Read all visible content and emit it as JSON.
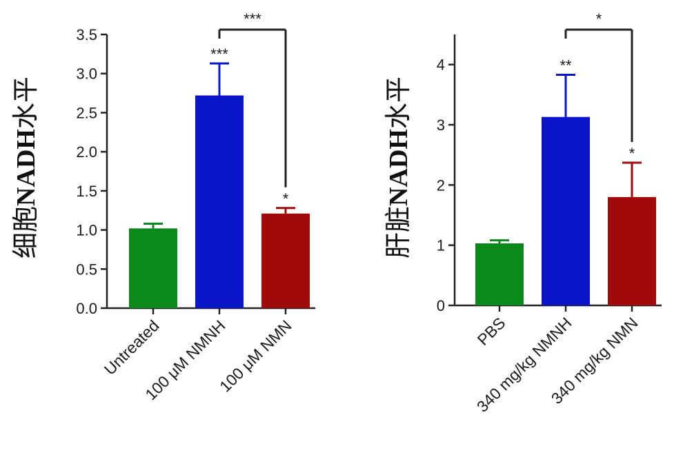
{
  "chart_data": [
    {
      "type": "bar",
      "ylabel_prefix": "细胞",
      "ylabel_bold": "NADH",
      "ylabel_suffix": "水平",
      "xlabel": "",
      "ylim": [
        0,
        3.5
      ],
      "yticks": [
        0.0,
        0.5,
        1.0,
        1.5,
        2.0,
        2.5,
        3.0,
        3.5
      ],
      "ytick_labels": [
        "0.0",
        "0.5",
        "1.0",
        "1.5",
        "2.0",
        "2.5",
        "3.0",
        "3.5"
      ],
      "categories": [
        "Untreated",
        "100 μM NMNH",
        "100 μM NMN"
      ],
      "values": [
        1.02,
        2.72,
        1.21
      ],
      "errors": [
        0.06,
        0.41,
        0.07
      ],
      "colors": [
        "#0a8a1a",
        "#0a14c8",
        "#a00a0a"
      ],
      "star_labels": [
        "",
        "***",
        "*"
      ],
      "bracket": {
        "from": 1,
        "to": 2,
        "label": "***"
      }
    },
    {
      "type": "bar",
      "ylabel_prefix": "肝脏",
      "ylabel_bold": "NADH",
      "ylabel_suffix": "水平",
      "xlabel": "",
      "ylim": [
        0,
        4.5
      ],
      "yticks": [
        0,
        1,
        2,
        3,
        4
      ],
      "ytick_labels": [
        "0",
        "1",
        "2",
        "3",
        "4"
      ],
      "categories": [
        "PBS",
        "340 mg/kg NMNH",
        "340 mg/kg NMN"
      ],
      "values": [
        1.03,
        3.13,
        1.8
      ],
      "errors": [
        0.05,
        0.7,
        0.57
      ],
      "colors": [
        "#0a8a1a",
        "#0a14c8",
        "#a00a0a"
      ],
      "star_labels": [
        "",
        "**",
        "*"
      ],
      "bracket": {
        "from": 1,
        "to": 2,
        "label": "*"
      }
    }
  ]
}
